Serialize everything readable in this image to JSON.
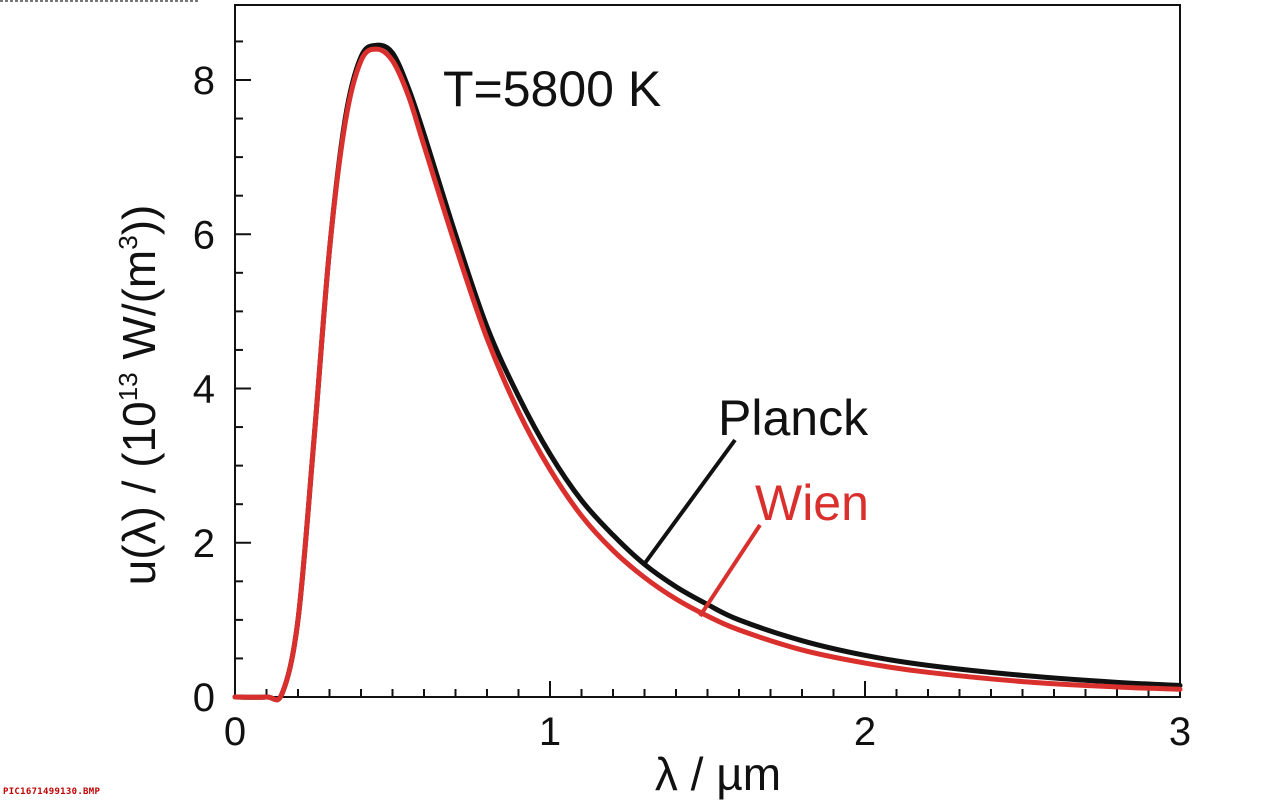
{
  "chart_data": {
    "type": "line",
    "title": "",
    "xlabel": "λ / µm",
    "ylabel": "u(λ) / (10",
    "ylabel_sup": "13",
    "ylabel_mid": " W/(m",
    "ylabel_sup2": "3",
    "ylabel_end": "))",
    "xlim": [
      0,
      3
    ],
    "ylim": [
      0,
      9
    ],
    "x_ticks": [
      "0",
      "1",
      "2",
      "3"
    ],
    "y_ticks": [
      "0",
      "2",
      "4",
      "6",
      "8"
    ],
    "grid": false,
    "temperature_label": "T=5800 K",
    "x": [
      0.1,
      0.15,
      0.2,
      0.25,
      0.3,
      0.35,
      0.4,
      0.45,
      0.5,
      0.55,
      0.6,
      0.7,
      0.8,
      0.9,
      1.0,
      1.1,
      1.2,
      1.3,
      1.4,
      1.5,
      1.6,
      1.8,
      2.0,
      2.2,
      2.5,
      2.8,
      3.0
    ],
    "series": [
      {
        "name": "Planck",
        "color": "#111111",
        "values": [
          0.0,
          0.05,
          1.0,
          3.3,
          5.8,
          7.5,
          8.3,
          8.45,
          8.35,
          7.9,
          7.3,
          6.0,
          4.8,
          3.9,
          3.15,
          2.55,
          2.1,
          1.72,
          1.43,
          1.2,
          1.0,
          0.73,
          0.54,
          0.41,
          0.28,
          0.19,
          0.15
        ]
      },
      {
        "name": "Wien",
        "color": "#d9302e",
        "values": [
          0.0,
          0.05,
          1.0,
          3.3,
          5.8,
          7.45,
          8.25,
          8.4,
          8.25,
          7.8,
          7.15,
          5.85,
          4.65,
          3.7,
          2.95,
          2.35,
          1.9,
          1.55,
          1.27,
          1.05,
          0.87,
          0.61,
          0.44,
          0.32,
          0.2,
          0.13,
          0.1
        ]
      }
    ]
  },
  "file_label": "PIC1671499130.BMP"
}
